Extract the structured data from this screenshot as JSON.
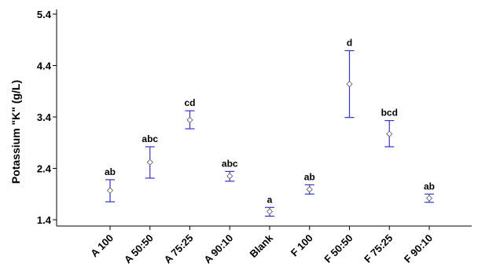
{
  "chart_data": {
    "type": "scatter",
    "ylabel": "Potassium \"K\" (g/L)",
    "xlabel": "",
    "ylim": [
      1.4,
      5.4
    ],
    "yticks": [
      "1.4",
      "2.4",
      "3.4",
      "4.4",
      "5.4"
    ],
    "grid": false,
    "categories": [
      "A 100",
      "A 50:50",
      "A 75:25",
      "A 90:10",
      "Blank",
      "F 100",
      "F 50:50",
      "F 75:25",
      "F 90:10"
    ],
    "means": [
      1.97,
      2.52,
      3.34,
      2.25,
      1.56,
      1.99,
      4.04,
      3.07,
      1.82
    ],
    "lower": [
      1.75,
      2.21,
      3.17,
      2.15,
      1.47,
      1.9,
      3.39,
      2.82,
      1.74
    ],
    "upper": [
      2.18,
      2.82,
      3.52,
      2.34,
      1.64,
      2.08,
      4.69,
      3.33,
      1.9
    ],
    "groups": [
      "ab",
      "abc",
      "cd",
      "abc",
      "a",
      "ab",
      "d",
      "bcd",
      "ab"
    ],
    "colors": {
      "errorbar": "#3333cc",
      "marker": "#666666",
      "axis": "#000000"
    }
  }
}
